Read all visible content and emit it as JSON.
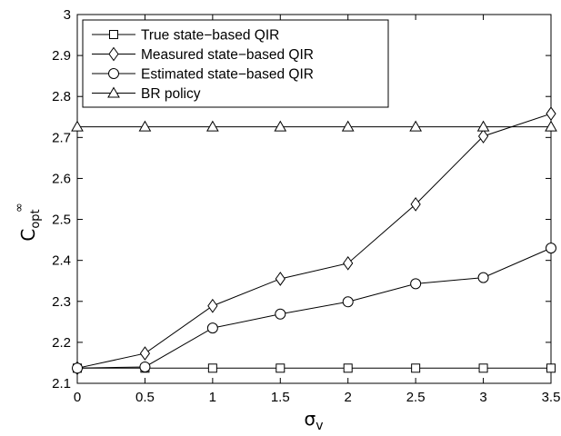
{
  "chart_data": {
    "type": "line",
    "x": [
      0,
      0.5,
      1,
      1.5,
      2,
      2.5,
      3,
      3.5
    ],
    "xlim": [
      0,
      3.5
    ],
    "ylim": [
      2.1,
      3.0
    ],
    "xticks": [
      "0",
      "0.5",
      "1",
      "1.5",
      "2",
      "2.5",
      "3",
      "3.5"
    ],
    "yticks": [
      "2.1",
      "2.2",
      "2.3",
      "2.4",
      "2.5",
      "2.6",
      "2.7",
      "2.8",
      "2.9",
      "3"
    ],
    "xlabel": {
      "base": "σ",
      "sub": "v"
    },
    "ylabel": {
      "base": "C",
      "sup": "∞",
      "sub": "opt"
    },
    "grid": false,
    "legend_position": "top-left",
    "series": [
      {
        "name": "True state−based QIR",
        "marker": "square",
        "values": [
          2.137,
          2.137,
          2.137,
          2.137,
          2.137,
          2.137,
          2.137,
          2.137
        ]
      },
      {
        "name": "Measured state−based QIR",
        "marker": "diamond",
        "values": [
          2.137,
          2.173,
          2.289,
          2.355,
          2.393,
          2.537,
          2.703,
          2.758
        ]
      },
      {
        "name": "Estimated state−based QIR",
        "marker": "circle",
        "values": [
          2.137,
          2.14,
          2.235,
          2.269,
          2.299,
          2.343,
          2.358,
          2.43
        ]
      },
      {
        "name": "BR policy",
        "marker": "triangle",
        "values": [
          2.726,
          2.726,
          2.726,
          2.726,
          2.726,
          2.726,
          2.726,
          2.726
        ]
      }
    ]
  }
}
